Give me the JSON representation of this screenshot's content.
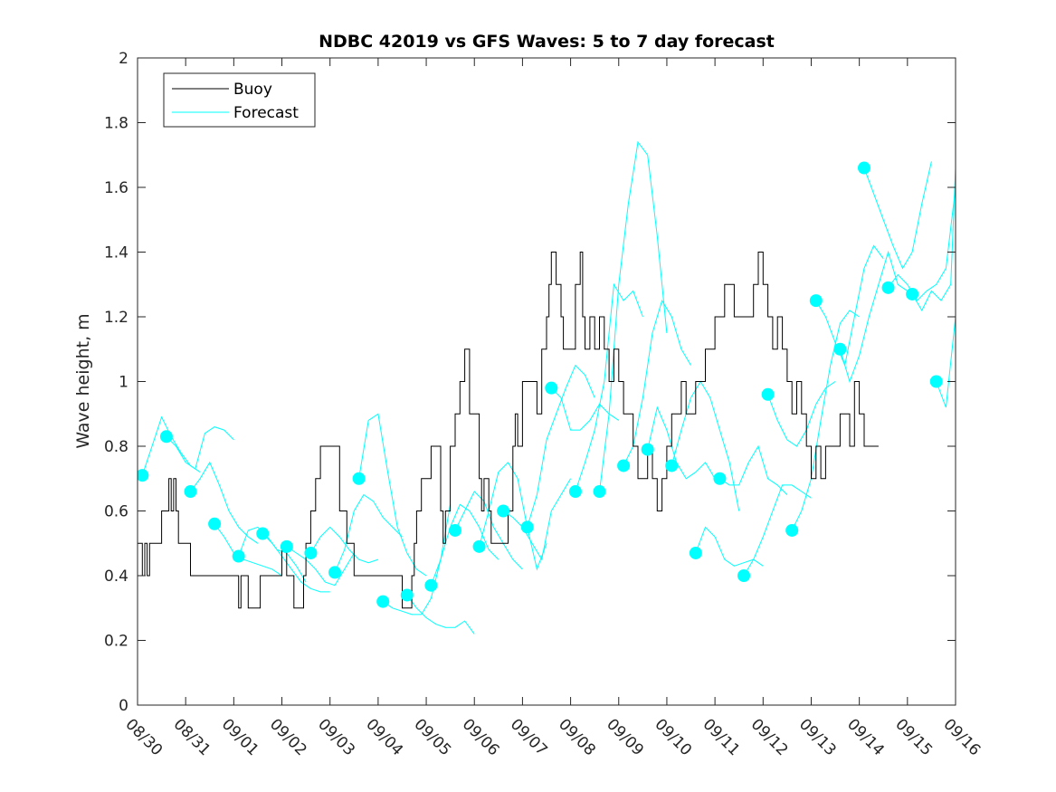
{
  "chart_data": {
    "type": "line",
    "title": "NDBC 42019 vs GFS Waves: 5 to 7 day forecast",
    "xlabel": "",
    "ylabel": "Wave height, m",
    "ylim": [
      0,
      2
    ],
    "xlim_days": [
      0,
      17
    ],
    "x_unit": "days since 08/30",
    "yticks": [
      0,
      0.2,
      0.4,
      0.6,
      0.8,
      1,
      1.2,
      1.4,
      1.6,
      1.8,
      2
    ],
    "ytick_labels": [
      "0",
      "0.2",
      "0.4",
      "0.6",
      "0.8",
      "1",
      "1.2",
      "1.4",
      "1.6",
      "1.8",
      "2"
    ],
    "xtick_labels": [
      "08/30",
      "08/31",
      "09/01",
      "09/02",
      "09/03",
      "09/04",
      "09/05",
      "09/06",
      "09/07",
      "09/08",
      "09/09",
      "09/10",
      "09/11",
      "09/12",
      "09/13",
      "09/14",
      "09/15",
      "09/16"
    ],
    "grid": false,
    "legend": {
      "placement": "top-left",
      "entries": [
        {
          "label": "Buoy",
          "color": "#000000"
        },
        {
          "label": "Forecast",
          "color": "#00ffff"
        }
      ]
    },
    "colors": {
      "buoy": "#000000",
      "forecast": "#00ffff",
      "marker": "#00ffff"
    },
    "buoy": {
      "x": [
        0,
        0.1,
        0.15,
        0.2,
        0.25,
        0.3,
        0.5,
        0.65,
        0.7,
        0.75,
        0.8,
        0.85,
        0.9,
        1.1,
        1.3,
        1.35,
        1.4,
        1.5,
        2.0,
        2.1,
        2.15,
        2.2,
        2.3,
        2.5,
        2.55,
        2.6,
        2.75,
        3.0,
        3.1,
        3.2,
        3.25,
        3.4,
        3.45,
        3.5,
        3.6,
        3.65,
        3.7,
        3.8,
        4.2,
        4.35,
        4.4,
        4.5,
        4.8,
        4.9,
        5.0,
        5.5,
        5.7,
        5.75,
        5.8,
        5.9,
        6.1,
        6.3,
        6.35,
        6.4,
        6.5,
        6.6,
        6.7,
        6.8,
        6.9,
        7.1,
        7.15,
        7.2,
        7.3,
        7.35,
        7.5,
        7.6,
        7.7,
        7.8,
        7.85,
        7.9,
        8.0,
        8.3,
        8.4,
        8.5,
        8.55,
        8.6,
        8.7,
        8.8,
        8.85,
        9.1,
        9.2,
        9.25,
        9.3,
        9.4,
        9.5,
        9.6,
        9.7,
        9.8,
        9.9,
        10.0,
        10.1,
        10.3,
        10.4,
        10.5,
        10.6,
        10.7,
        10.8,
        10.9,
        11.0,
        11.1,
        11.2,
        11.3,
        11.4,
        11.5,
        11.6,
        11.8,
        12.0,
        12.2,
        12.4,
        12.6,
        12.8,
        12.9,
        13.0,
        13.1,
        13.2,
        13.3,
        13.4,
        13.5,
        13.6,
        13.7,
        13.8,
        13.9,
        14.0,
        14.1,
        14.2,
        14.3,
        14.4,
        14.6,
        14.8,
        14.9,
        15.0,
        15.1,
        15.2,
        15.3,
        15.4
      ],
      "y": [
        0.5,
        0.4,
        0.5,
        0.4,
        0.5,
        0.5,
        0.6,
        0.7,
        0.6,
        0.7,
        0.6,
        0.5,
        0.5,
        0.4,
        0.4,
        0.4,
        0.4,
        0.4,
        0.4,
        0.3,
        0.4,
        0.4,
        0.3,
        0.3,
        0.4,
        0.4,
        0.4,
        0.5,
        0.4,
        0.4,
        0.3,
        0.3,
        0.4,
        0.5,
        0.6,
        0.6,
        0.7,
        0.8,
        0.6,
        0.5,
        0.5,
        0.4,
        0.4,
        0.4,
        0.4,
        0.3,
        0.4,
        0.5,
        0.6,
        0.7,
        0.8,
        0.6,
        0.5,
        0.6,
        0.8,
        0.9,
        1.0,
        1.1,
        0.9,
        0.7,
        0.6,
        0.7,
        0.6,
        0.5,
        0.5,
        0.5,
        0.6,
        0.8,
        0.9,
        0.8,
        1.0,
        0.9,
        1.1,
        1.2,
        1.3,
        1.4,
        1.3,
        1.2,
        1.1,
        1.3,
        1.4,
        1.2,
        1.1,
        1.2,
        1.1,
        1.2,
        1.1,
        1.0,
        1.1,
        1.0,
        0.9,
        0.8,
        0.7,
        0.7,
        0.8,
        0.7,
        0.6,
        0.7,
        0.8,
        0.9,
        0.9,
        1.0,
        0.9,
        0.9,
        1.0,
        1.1,
        1.2,
        1.3,
        1.2,
        1.2,
        1.3,
        1.4,
        1.3,
        1.2,
        1.1,
        1.2,
        1.1,
        1.0,
        0.9,
        1.0,
        0.9,
        0.8,
        0.7,
        0.8,
        0.7,
        0.8,
        0.8,
        0.9,
        0.8,
        1.0,
        0.9,
        0.8,
        0.8,
        0.8,
        0.8
      ]
    },
    "forecast_runs": [
      {
        "x": [
          0.1,
          0.3,
          0.5,
          0.7,
          0.9,
          1.1,
          1.3
        ],
        "y": [
          0.71,
          0.8,
          0.89,
          0.83,
          0.78,
          0.74,
          0.72
        ]
      },
      {
        "x": [
          0.6,
          0.8,
          1.0,
          1.2,
          1.4,
          1.6,
          1.8,
          2.0
        ],
        "y": [
          0.83,
          0.8,
          0.75,
          0.73,
          0.84,
          0.86,
          0.85,
          0.82
        ]
      },
      {
        "x": [
          1.1,
          1.3,
          1.5,
          1.7,
          1.9,
          2.1,
          2.3,
          2.5
        ],
        "y": [
          0.66,
          0.7,
          0.75,
          0.68,
          0.6,
          0.55,
          0.52,
          0.5
        ]
      },
      {
        "x": [
          1.6,
          1.8,
          2.0,
          2.2,
          2.4,
          2.6,
          2.8,
          3.0
        ],
        "y": [
          0.56,
          0.52,
          0.47,
          0.45,
          0.44,
          0.43,
          0.42,
          0.4
        ]
      },
      {
        "x": [
          2.1,
          2.3,
          2.5,
          2.7,
          2.9,
          3.1,
          3.3,
          3.5
        ],
        "y": [
          0.46,
          0.54,
          0.55,
          0.52,
          0.48,
          0.47,
          0.43,
          0.38
        ]
      },
      {
        "x": [
          2.6,
          2.8,
          3.0,
          3.2,
          3.4,
          3.6,
          3.8,
          4.0
        ],
        "y": [
          0.53,
          0.5,
          0.46,
          0.42,
          0.38,
          0.36,
          0.35,
          0.35
        ]
      },
      {
        "x": [
          3.1,
          3.3,
          3.5,
          3.7,
          3.9,
          4.1,
          4.3,
          4.5
        ],
        "y": [
          0.49,
          0.47,
          0.45,
          0.42,
          0.38,
          0.37,
          0.42,
          0.47
        ]
      },
      {
        "x": [
          3.6,
          3.8,
          4.0,
          4.2,
          4.4,
          4.6,
          4.8,
          5.0
        ],
        "y": [
          0.47,
          0.52,
          0.55,
          0.52,
          0.48,
          0.45,
          0.44,
          0.45
        ]
      },
      {
        "x": [
          4.1,
          4.3,
          4.5,
          4.7,
          4.9,
          5.1,
          5.3,
          5.5
        ],
        "y": [
          0.41,
          0.48,
          0.6,
          0.65,
          0.63,
          0.58,
          0.55,
          0.52
        ]
      },
      {
        "x": [
          4.6,
          4.8,
          5.0,
          5.2,
          5.4,
          5.6,
          5.8,
          6.0
        ],
        "y": [
          0.7,
          0.88,
          0.9,
          0.72,
          0.55,
          0.47,
          0.42,
          0.4
        ]
      },
      {
        "x": [
          5.1,
          5.3,
          5.5,
          5.7,
          5.9,
          6.1,
          6.3,
          6.5
        ],
        "y": [
          0.32,
          0.3,
          0.29,
          0.28,
          0.28,
          0.33,
          0.45,
          0.62
        ]
      },
      {
        "x": [
          5.6,
          5.8,
          6.0,
          6.2,
          6.4,
          6.6,
          6.8,
          7.0
        ],
        "y": [
          0.34,
          0.3,
          0.27,
          0.25,
          0.24,
          0.24,
          0.26,
          0.22
        ]
      },
      {
        "x": [
          6.1,
          6.3,
          6.5,
          6.7,
          6.9,
          7.1,
          7.3,
          7.5
        ],
        "y": [
          0.37,
          0.45,
          0.55,
          0.62,
          0.6,
          0.55,
          0.48,
          0.45
        ]
      },
      {
        "x": [
          6.6,
          6.8,
          7.0,
          7.2,
          7.4,
          7.6,
          7.8,
          8.0
        ],
        "y": [
          0.54,
          0.6,
          0.66,
          0.63,
          0.55,
          0.5,
          0.45,
          0.42
        ]
      },
      {
        "x": [
          7.1,
          7.3,
          7.5,
          7.7,
          7.9,
          8.1,
          8.3,
          8.5
        ],
        "y": [
          0.49,
          0.6,
          0.72,
          0.75,
          0.7,
          0.55,
          0.42,
          0.5
        ]
      },
      {
        "x": [
          7.6,
          7.8,
          8.0,
          8.2,
          8.4,
          8.6,
          8.8,
          9.0
        ],
        "y": [
          0.6,
          0.58,
          0.55,
          0.5,
          0.45,
          0.6,
          0.65,
          0.7
        ]
      },
      {
        "x": [
          8.1,
          8.3,
          8.5,
          8.7,
          8.9,
          9.1,
          9.3,
          9.5
        ],
        "y": [
          0.55,
          0.65,
          0.82,
          0.9,
          0.98,
          1.05,
          1.02,
          0.95
        ]
      },
      {
        "x": [
          8.6,
          8.8,
          9.0,
          9.2,
          9.4,
          9.6,
          9.8,
          10.0
        ],
        "y": [
          0.98,
          0.95,
          0.85,
          0.85,
          0.88,
          0.93,
          0.9,
          0.88
        ]
      },
      {
        "x": [
          9.1,
          9.3,
          9.5,
          9.7,
          9.9,
          10.1,
          10.3,
          10.5
        ],
        "y": [
          0.66,
          0.75,
          0.85,
          1.0,
          1.3,
          1.25,
          1.28,
          1.2
        ]
      },
      {
        "x": [
          9.6,
          9.8,
          10.0,
          10.2,
          10.4,
          10.6,
          10.8,
          11.0
        ],
        "y": [
          0.66,
          0.9,
          1.3,
          1.55,
          1.74,
          1.7,
          1.45,
          1.15
        ]
      },
      {
        "x": [
          10.1,
          10.3,
          10.5,
          10.7,
          10.9,
          11.1,
          11.3,
          11.5
        ],
        "y": [
          0.74,
          0.8,
          0.95,
          1.15,
          1.25,
          1.2,
          1.1,
          1.05
        ]
      },
      {
        "x": [
          10.6,
          10.8,
          11.0,
          11.2,
          11.4,
          11.6,
          11.8,
          12.0
        ],
        "y": [
          0.79,
          0.92,
          0.85,
          0.75,
          0.7,
          0.72,
          0.75,
          0.7
        ]
      },
      {
        "x": [
          11.1,
          11.3,
          11.5,
          11.7,
          11.9,
          12.1,
          12.3,
          12.5
        ],
        "y": [
          0.74,
          0.85,
          0.95,
          1.0,
          0.95,
          0.85,
          0.75,
          0.6
        ]
      },
      {
        "x": [
          11.6,
          11.8,
          12.0,
          12.2,
          12.4,
          12.6,
          12.8,
          13.0
        ],
        "y": [
          0.47,
          0.55,
          0.52,
          0.45,
          0.43,
          0.44,
          0.45,
          0.43
        ]
      },
      {
        "x": [
          12.1,
          12.3,
          12.5,
          12.7,
          12.9,
          13.1,
          13.3,
          13.5
        ],
        "y": [
          0.7,
          0.68,
          0.68,
          0.75,
          0.8,
          0.7,
          0.68,
          0.65
        ]
      },
      {
        "x": [
          12.6,
          12.8,
          13.0,
          13.2,
          13.4,
          13.6,
          13.8,
          14.0
        ],
        "y": [
          0.4,
          0.45,
          0.52,
          0.6,
          0.68,
          0.68,
          0.66,
          0.64
        ]
      },
      {
        "x": [
          13.1,
          13.3,
          13.5,
          13.7,
          13.9,
          14.1,
          14.3,
          14.5
        ],
        "y": [
          0.96,
          0.88,
          0.82,
          0.8,
          0.85,
          0.93,
          0.98,
          1.0
        ]
      },
      {
        "x": [
          13.6,
          13.8,
          14.0,
          14.2,
          14.4,
          14.6,
          14.8,
          15.0
        ],
        "y": [
          0.54,
          0.6,
          0.7,
          0.88,
          1.05,
          1.18,
          1.22,
          1.2
        ]
      },
      {
        "x": [
          14.1,
          14.3,
          14.5,
          14.7,
          14.9,
          15.1,
          15.3,
          15.5
        ],
        "y": [
          1.25,
          1.2,
          1.12,
          1.05,
          1.2,
          1.35,
          1.42,
          1.38
        ]
      },
      {
        "x": [
          14.6,
          14.8,
          15.0,
          15.2,
          15.4,
          15.6,
          15.8,
          16.0
        ],
        "y": [
          1.1,
          1.0,
          1.08,
          1.2,
          1.3,
          1.4,
          1.3,
          1.28
        ]
      },
      {
        "x": [
          15.1,
          15.3,
          15.5,
          15.7,
          15.9,
          16.1,
          16.3,
          16.5
        ],
        "y": [
          1.66,
          1.58,
          1.5,
          1.42,
          1.35,
          1.4,
          1.55,
          1.68
        ]
      },
      {
        "x": [
          15.6,
          15.8,
          16.0,
          16.2,
          16.4,
          16.6,
          16.8,
          17.0
        ],
        "y": [
          1.29,
          1.33,
          1.3,
          1.25,
          1.28,
          1.3,
          1.35,
          1.6
        ]
      },
      {
        "x": [
          16.1,
          16.3,
          16.5,
          16.7,
          16.9,
          17.0
        ],
        "y": [
          1.27,
          1.22,
          1.28,
          1.25,
          1.3,
          1.66
        ]
      },
      {
        "x": [
          16.6,
          16.8,
          17.0
        ],
        "y": [
          1.0,
          0.92,
          1.2
        ]
      }
    ],
    "forecast_markers": {
      "x": [
        0.1,
        0.6,
        1.1,
        1.6,
        2.1,
        2.6,
        3.1,
        3.6,
        4.1,
        4.6,
        5.1,
        5.6,
        6.1,
        6.6,
        7.1,
        7.6,
        8.1,
        8.6,
        9.1,
        9.6,
        10.1,
        10.6,
        11.1,
        11.6,
        12.1,
        12.6,
        13.1,
        13.6,
        14.1,
        14.6,
        15.1,
        15.6,
        16.1,
        16.6
      ],
      "y": [
        0.71,
        0.83,
        0.66,
        0.56,
        0.46,
        0.53,
        0.49,
        0.47,
        0.41,
        0.7,
        0.32,
        0.34,
        0.37,
        0.54,
        0.49,
        0.6,
        0.55,
        0.98,
        0.66,
        0.66,
        0.74,
        0.79,
        0.74,
        0.47,
        0.7,
        0.4,
        0.96,
        0.54,
        1.25,
        1.1,
        1.66,
        1.29,
        1.27,
        1.0
      ]
    }
  }
}
